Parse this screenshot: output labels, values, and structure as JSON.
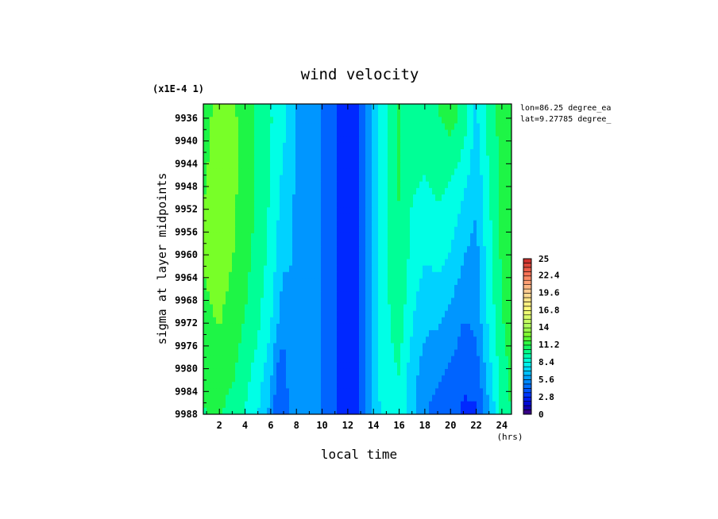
{
  "chart_data": {
    "type": "heatmap",
    "title": "wind velocity",
    "xlabel": "local time",
    "x_unit": "(hrs)",
    "ylabel": "sigma at layer midpoints",
    "y_scale_note": "(x1E-4 1)",
    "annotations": [
      "lon=86.25 degree_ea",
      "lat=9.27785 degree_"
    ],
    "xlim": [
      0.75,
      24.75
    ],
    "ylim": [
      9933.5,
      9988
    ],
    "x_ticks": [
      2,
      4,
      6,
      8,
      10,
      12,
      14,
      16,
      18,
      20,
      22,
      24
    ],
    "x_tick_labels": [
      "2",
      "4",
      "6",
      "8",
      "10",
      "12",
      "14",
      "16",
      "18",
      "20",
      "22",
      "24"
    ],
    "y_ticks": [
      9936,
      9940,
      9944,
      9948,
      9952,
      9956,
      9960,
      9964,
      9968,
      9972,
      9976,
      9980,
      9984,
      9988
    ],
    "y_tick_labels": [
      "9936",
      "9940",
      "9944",
      "9948",
      "9952",
      "9956",
      "9960",
      "9964",
      "9968",
      "9972",
      "9976",
      "9980",
      "9984",
      "9988"
    ],
    "x": [
      0.75,
      2,
      3,
      4,
      5,
      6,
      6.5,
      7,
      7.5,
      8,
      9,
      10,
      11,
      12,
      13,
      14,
      15,
      16,
      17,
      18,
      19,
      20,
      21,
      22,
      23,
      24,
      24.75
    ],
    "y": [
      9933.5,
      9936,
      9948,
      9960,
      9972,
      9980,
      9988
    ],
    "z": [
      [
        11.0,
        12.4,
        12.0,
        11.2,
        10.0,
        9.0,
        8.5,
        8.0,
        7.0,
        6.0,
        5.4,
        4.8,
        3.6,
        2.4,
        3.6,
        7.0,
        9.0,
        10.6,
        9.4,
        9.6,
        10.4,
        11.0,
        10.0,
        7.4,
        9.8,
        11.0,
        11.4
      ],
      [
        11.2,
        12.8,
        12.2,
        11.4,
        10.2,
        9.2,
        8.6,
        8.0,
        7.0,
        6.0,
        5.4,
        4.8,
        3.6,
        2.4,
        3.6,
        7.0,
        9.0,
        10.6,
        9.4,
        9.6,
        10.4,
        11.0,
        10.0,
        7.4,
        9.8,
        11.0,
        11.4
      ],
      [
        11.8,
        12.6,
        12.2,
        11.4,
        10.2,
        9.0,
        8.0,
        7.4,
        6.8,
        6.0,
        5.4,
        4.8,
        3.6,
        2.4,
        3.6,
        7.0,
        9.0,
        10.6,
        9.2,
        9.0,
        9.4,
        9.0,
        8.0,
        6.6,
        9.0,
        11.0,
        11.4
      ],
      [
        12.0,
        12.4,
        12.0,
        11.0,
        10.0,
        8.6,
        7.6,
        6.6,
        6.4,
        6.0,
        5.4,
        4.8,
        3.6,
        2.4,
        3.6,
        7.0,
        9.0,
        10.4,
        8.6,
        7.8,
        8.2,
        7.6,
        6.4,
        5.8,
        8.6,
        10.8,
        11.2
      ],
      [
        11.6,
        12.0,
        11.4,
        10.4,
        9.4,
        7.8,
        6.4,
        5.4,
        6.0,
        6.0,
        5.4,
        4.8,
        3.6,
        2.4,
        3.6,
        7.0,
        8.8,
        9.8,
        7.8,
        6.6,
        6.4,
        5.8,
        4.8,
        5.2,
        8.0,
        10.4,
        11.0
      ],
      [
        11.0,
        11.2,
        10.8,
        9.6,
        8.6,
        6.8,
        4.8,
        4.2,
        5.6,
        5.8,
        5.4,
        4.8,
        3.6,
        2.4,
        3.6,
        7.0,
        8.6,
        9.2,
        7.0,
        5.6,
        5.2,
        4.8,
        4.0,
        4.2,
        7.2,
        10.0,
        10.8
      ],
      [
        10.4,
        10.6,
        10.0,
        9.0,
        7.8,
        5.8,
        3.6,
        3.4,
        5.4,
        5.6,
        5.4,
        4.8,
        3.6,
        2.4,
        3.6,
        7.0,
        8.4,
        8.8,
        6.6,
        5.0,
        4.4,
        4.0,
        3.2,
        3.2,
        6.2,
        9.6,
        10.6
      ]
    ],
    "colorbar": {
      "min": 0,
      "max": 25,
      "tick_labels": [
        "25",
        "22.4",
        "19.6",
        "16.8",
        "14",
        "11.2",
        "8.4",
        "5.6",
        "2.8",
        "0"
      ],
      "tick_values": [
        25,
        22.4,
        19.6,
        16.8,
        14,
        11.2,
        8.4,
        5.6,
        2.8,
        0
      ]
    },
    "grid": false,
    "legend": "right"
  }
}
